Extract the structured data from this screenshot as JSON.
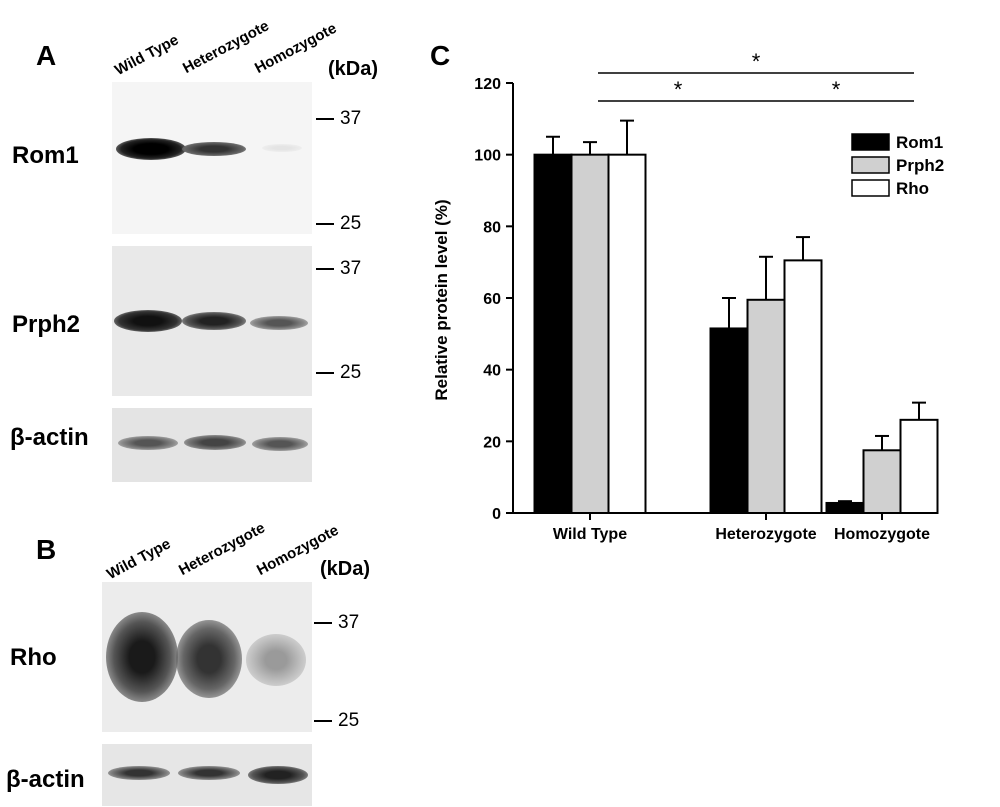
{
  "panels": {
    "A": {
      "letter": "A",
      "lanes": [
        "Wild Type",
        "Heterozygote",
        "Homozygote"
      ],
      "kda": "(kDa)",
      "rows": [
        {
          "label": "Rom1",
          "markers": [
            "37",
            "25"
          ]
        },
        {
          "label": "Prph2",
          "markers": [
            "37",
            "25"
          ]
        },
        {
          "label": "β-actin",
          "markers": []
        }
      ]
    },
    "B": {
      "letter": "B",
      "lanes": [
        "Wild Type",
        "Heterozygote",
        "Homozygote"
      ],
      "kda": "(kDa)",
      "rows": [
        {
          "label": "Rho",
          "markers": [
            "37",
            "25"
          ]
        },
        {
          "label": "β-actin",
          "markers": []
        }
      ]
    },
    "C": {
      "letter": "C"
    }
  },
  "chart_data": {
    "type": "bar",
    "categories": [
      "Wild Type",
      "Heterozygote",
      "Homozygote"
    ],
    "series": [
      {
        "name": "Rom1",
        "values": [
          100,
          51.5,
          2.8
        ],
        "errors": [
          5,
          8.5,
          0.5
        ],
        "color": "#000000"
      },
      {
        "name": "Prph2",
        "values": [
          100,
          59.5,
          17.5
        ],
        "errors": [
          3.5,
          12,
          4
        ],
        "color": "#d0d0d0"
      },
      {
        "name": "Rho",
        "values": [
          100,
          70.5,
          26
        ],
        "errors": [
          9.5,
          6.5,
          4.8
        ],
        "color": "#ffffff"
      }
    ],
    "ylabel": "Relative protein level (%)",
    "xlabel": "",
    "ylim": [
      0,
      120
    ],
    "yticks": [
      "0",
      "20",
      "40",
      "60",
      "80",
      "100",
      "120"
    ],
    "significance": [
      {
        "from": "Wild Type",
        "to": "Homozygote",
        "label": "*"
      },
      {
        "from": "Wild Type",
        "to": "Heterozygote",
        "label": "*"
      },
      {
        "from": "Heterozygote",
        "to": "Homozygote",
        "label": "*"
      }
    ],
    "legend_position": "top-right",
    "grid": false
  }
}
